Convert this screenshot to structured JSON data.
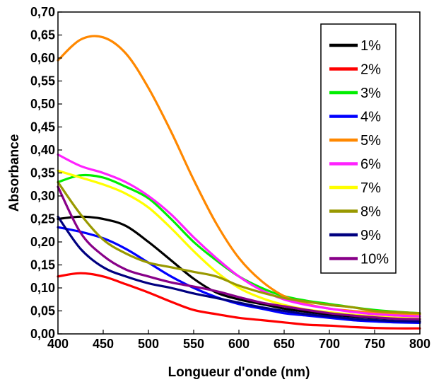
{
  "chart_data": {
    "type": "line",
    "title": "",
    "xlabel": "Longueur d'onde (nm)",
    "ylabel": "Absorbance",
    "xlim": [
      400,
      800
    ],
    "ylim": [
      0,
      0.7
    ],
    "xticks": [
      400,
      450,
      500,
      550,
      600,
      650,
      700,
      750,
      800
    ],
    "xtick_labels": [
      "400",
      "450",
      "500",
      "550",
      "600",
      "650",
      "700",
      "750",
      "800"
    ],
    "yticks": [
      0,
      0.05,
      0.1,
      0.15,
      0.2,
      0.25,
      0.3,
      0.35,
      0.4,
      0.45,
      0.5,
      0.55,
      0.6,
      0.65,
      0.7
    ],
    "ytick_labels": [
      "0,00",
      "0,05",
      "0,10",
      "0,15",
      "0,20",
      "0,25",
      "0,30",
      "0,35",
      "0,40",
      "0,45",
      "0,50",
      "0,55",
      "0,60",
      "0,65",
      "0,70"
    ],
    "grid": false,
    "legend_position": "top-right",
    "x": [
      400,
      425,
      450,
      475,
      500,
      525,
      550,
      575,
      600,
      625,
      650,
      675,
      700,
      725,
      750,
      775,
      800
    ],
    "series": [
      {
        "name": "1%",
        "color": "#000000",
        "values": [
          0.25,
          0.255,
          0.25,
          0.235,
          0.2,
          0.16,
          0.12,
          0.09,
          0.075,
          0.065,
          0.055,
          0.048,
          0.042,
          0.038,
          0.035,
          0.033,
          0.032
        ]
      },
      {
        "name": "2%",
        "color": "#ff0000",
        "values": [
          0.125,
          0.132,
          0.125,
          0.108,
          0.09,
          0.07,
          0.052,
          0.043,
          0.035,
          0.03,
          0.025,
          0.02,
          0.018,
          0.015,
          0.013,
          0.012,
          0.012
        ]
      },
      {
        "name": "3%",
        "color": "#00ee00",
        "values": [
          0.33,
          0.345,
          0.34,
          0.32,
          0.295,
          0.25,
          0.2,
          0.16,
          0.125,
          0.1,
          0.082,
          0.072,
          0.065,
          0.058,
          0.052,
          0.048,
          0.045
        ]
      },
      {
        "name": "4%",
        "color": "#0000ff",
        "values": [
          0.232,
          0.222,
          0.208,
          0.185,
          0.155,
          0.125,
          0.1,
          0.08,
          0.065,
          0.055,
          0.045,
          0.04,
          0.035,
          0.03,
          0.027,
          0.025,
          0.024
        ]
      },
      {
        "name": "5%",
        "color": "#ff8800",
        "values": [
          0.595,
          0.64,
          0.645,
          0.61,
          0.535,
          0.44,
          0.335,
          0.24,
          0.165,
          0.115,
          0.082,
          0.065,
          0.055,
          0.05,
          0.046,
          0.044,
          0.043
        ]
      },
      {
        "name": "6%",
        "color": "#ff22ff",
        "values": [
          0.39,
          0.365,
          0.35,
          0.33,
          0.3,
          0.26,
          0.21,
          0.165,
          0.125,
          0.095,
          0.075,
          0.063,
          0.055,
          0.048,
          0.043,
          0.04,
          0.038
        ]
      },
      {
        "name": "7%",
        "color": "#ffff00",
        "values": [
          0.355,
          0.34,
          0.325,
          0.305,
          0.275,
          0.23,
          0.18,
          0.135,
          0.1,
          0.078,
          0.063,
          0.053,
          0.047,
          0.042,
          0.038,
          0.035,
          0.033
        ]
      },
      {
        "name": "8%",
        "color": "#999900",
        "values": [
          0.33,
          0.26,
          0.205,
          0.175,
          0.155,
          0.145,
          0.135,
          0.125,
          0.105,
          0.09,
          0.078,
          0.07,
          0.063,
          0.058,
          0.05,
          0.047,
          0.045
        ]
      },
      {
        "name": "9%",
        "color": "#000080",
        "values": [
          0.255,
          0.185,
          0.145,
          0.125,
          0.11,
          0.1,
          0.088,
          0.078,
          0.068,
          0.058,
          0.05,
          0.043,
          0.038,
          0.033,
          0.03,
          0.028,
          0.027
        ]
      },
      {
        "name": "10%",
        "color": "#880088",
        "values": [
          0.32,
          0.22,
          0.17,
          0.14,
          0.125,
          0.112,
          0.103,
          0.093,
          0.08,
          0.068,
          0.06,
          0.052,
          0.045,
          0.04,
          0.036,
          0.033,
          0.032
        ]
      }
    ]
  }
}
